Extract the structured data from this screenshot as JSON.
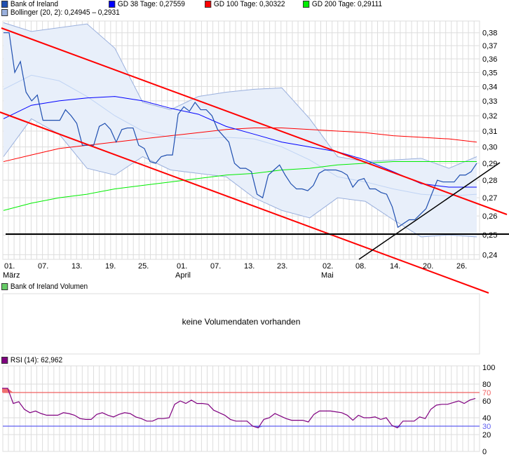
{
  "legend": {
    "price": {
      "label": "Bank of Ireland",
      "color": "#1f4fb0"
    },
    "gd38": {
      "label": "GD 38 Tage: 0,27559",
      "color": "#0000ff"
    },
    "gd100": {
      "label": "GD 100 Tage: 0,30322",
      "color": "#ff0000"
    },
    "gd200": {
      "label": "GD 200 Tage: 0,29111",
      "color": "#00ee00"
    },
    "bollinger": {
      "label": "Bollinger (20, 2): 0,24945 – 0,2931",
      "color": "#9ab0dd"
    },
    "volume": {
      "label": "Bank of Ireland Volumen",
      "color": "#66cc66"
    },
    "rsi": {
      "label": "RSI (14): 62,962",
      "color": "#800080"
    }
  },
  "volume_panel": {
    "message": "keine Volumendaten vorhanden"
  },
  "chart_data": [
    {
      "type": "line",
      "title": "",
      "yscale": "log",
      "ylim": [
        0.24,
        0.38
      ],
      "grid": true,
      "y_ticks": [
        "0,38",
        "0,37",
        "0,36",
        "0,35",
        "0,34",
        "0,33",
        "0,32",
        "0,31",
        "0,30",
        "0,29",
        "0,28",
        "0,27",
        "0,26",
        "0,25",
        "0,24"
      ],
      "x_ticks": [
        {
          "day": "01.",
          "month": "März"
        },
        {
          "day": "07.",
          "month": ""
        },
        {
          "day": "13.",
          "month": ""
        },
        {
          "day": "19.",
          "month": ""
        },
        {
          "day": "25.",
          "month": ""
        },
        {
          "day": "01.",
          "month": "April"
        },
        {
          "day": "07.",
          "month": ""
        },
        {
          "day": "13.",
          "month": ""
        },
        {
          "day": "23.",
          "month": ""
        },
        {
          "day": "02.",
          "month": "Mai"
        },
        {
          "day": "08.",
          "month": ""
        },
        {
          "day": "14.",
          "month": ""
        },
        {
          "day": "20.",
          "month": ""
        },
        {
          "day": "26.",
          "month": ""
        }
      ],
      "series": [
        {
          "name": "Bank of Ireland",
          "color": "#1f4fb0",
          "values": [
            0.38,
            0.38,
            0.35,
            0.358,
            0.336,
            0.33,
            0.334,
            0.317,
            0.317,
            0.317,
            0.317,
            0.324,
            0.32,
            0.315,
            0.301,
            0.301,
            0.301,
            0.313,
            0.315,
            0.311,
            0.303,
            0.311,
            0.312,
            0.312,
            0.301,
            0.299,
            0.291,
            0.29,
            0.294,
            0.295,
            0.295,
            0.321,
            0.326,
            0.323,
            0.329,
            0.324,
            0.324,
            0.32,
            0.311,
            0.307,
            0.303,
            0.29,
            0.287,
            0.287,
            0.285,
            0.272,
            0.27,
            0.283,
            0.286,
            0.289,
            0.283,
            0.278,
            0.275,
            0.275,
            0.274,
            0.277,
            0.284,
            0.286,
            0.286,
            0.286,
            0.285,
            0.283,
            0.276,
            0.28,
            0.281,
            0.275,
            0.275,
            0.273,
            0.272,
            0.265,
            0.254,
            0.256,
            0.258,
            0.258,
            0.261,
            0.264,
            0.272,
            0.28,
            0.279,
            0.279,
            0.279,
            0.283,
            0.283,
            0.285,
            0.29
          ]
        },
        {
          "name": "GD 38 Tage",
          "color": "#0000ff",
          "values": [
            0.318,
            0.327,
            0.33,
            0.332,
            0.333,
            0.33,
            0.325,
            0.321,
            0.313,
            0.308,
            0.303,
            0.3,
            0.297,
            0.292,
            0.285,
            0.278,
            0.276,
            0.276
          ]
        },
        {
          "name": "GD 100 Tage",
          "color": "#ff0000",
          "values": [
            0.291,
            0.295,
            0.299,
            0.301,
            0.303,
            0.305,
            0.307,
            0.309,
            0.311,
            0.312,
            0.312,
            0.311,
            0.31,
            0.309,
            0.307,
            0.306,
            0.305,
            0.303
          ]
        },
        {
          "name": "GD 200 Tage",
          "color": "#00ee00",
          "values": [
            0.263,
            0.267,
            0.27,
            0.272,
            0.275,
            0.277,
            0.279,
            0.281,
            0.283,
            0.284,
            0.286,
            0.287,
            0.289,
            0.29,
            0.291,
            0.291,
            0.291,
            0.291
          ]
        },
        {
          "name": "Bollinger (20, 2)",
          "color": "#9ab0dd",
          "upper": [
            0.388,
            0.381,
            0.384,
            0.387,
            0.368,
            0.329,
            0.324,
            0.333,
            0.336,
            0.338,
            0.339,
            0.318,
            0.294,
            0.291,
            0.292,
            0.293,
            0.287,
            0.294
          ],
          "middle": [
            0.338,
            0.348,
            0.344,
            0.333,
            0.32,
            0.31,
            0.306,
            0.305,
            0.306,
            0.305,
            0.3,
            0.292,
            0.282,
            0.279,
            0.275,
            0.272,
            0.271,
            0.272
          ],
          "lower": [
            0.294,
            0.318,
            0.308,
            0.287,
            0.283,
            0.294,
            0.286,
            0.284,
            0.282,
            0.27,
            0.263,
            0.259,
            0.27,
            0.268,
            0.258,
            0.249,
            0.25,
            0.249
          ]
        }
      ],
      "support_level": 0.25
    },
    {
      "type": "line",
      "title": "",
      "ylim": [
        0,
        100
      ],
      "grid": true,
      "y_ticks": [
        "100",
        "80",
        "70",
        "60",
        "40",
        "30",
        "20",
        "0"
      ],
      "reference_lines": [
        {
          "value": 70,
          "color": "#f06060"
        },
        {
          "value": 30,
          "color": "#6060f0"
        }
      ],
      "series": [
        {
          "name": "RSI (14)",
          "color": "#800080",
          "values": [
            75,
            75,
            57,
            59,
            50,
            46,
            48,
            45,
            43,
            43,
            43,
            46,
            45,
            43,
            39,
            38,
            38,
            44,
            46,
            43,
            41,
            44,
            46,
            45,
            41,
            39,
            36,
            36,
            39,
            39,
            40,
            56,
            60,
            57,
            61,
            57,
            57,
            56,
            49,
            46,
            43,
            38,
            36,
            36,
            36,
            30,
            28,
            38,
            40,
            45,
            42,
            39,
            37,
            37,
            37,
            35,
            44,
            48,
            48,
            48,
            47,
            46,
            43,
            37,
            43,
            40,
            40,
            41,
            38,
            40,
            31,
            28,
            36,
            36,
            36,
            41,
            39,
            50,
            55,
            56,
            56,
            58,
            60,
            57,
            61,
            63
          ]
        }
      ]
    }
  ]
}
